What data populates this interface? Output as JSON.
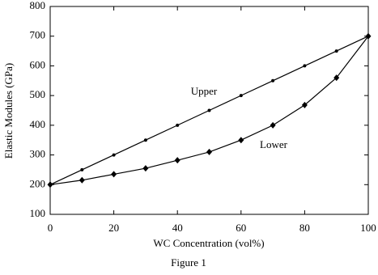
{
  "chart_data": {
    "type": "line",
    "caption": "Figure 1",
    "xlabel": "WC Concentration (vol%)",
    "ylabel": "Elastic Modules (GPa)",
    "x": [
      0,
      10,
      20,
      30,
      40,
      50,
      60,
      70,
      80,
      90,
      100
    ],
    "series": [
      {
        "name": "Upper",
        "color": "#000000",
        "marker": "dot",
        "values": [
          200,
          250,
          300,
          350,
          400,
          450,
          500,
          550,
          600,
          650,
          700
        ]
      },
      {
        "name": "Lower",
        "color": "#000000",
        "marker": "diamond",
        "values": [
          200,
          215,
          235,
          255,
          282,
          310,
          350,
          400,
          468,
          560,
          700
        ]
      }
    ],
    "xlim": [
      0,
      100
    ],
    "xticks": [
      0,
      20,
      40,
      60,
      80,
      100
    ],
    "ylim": [
      100,
      800
    ],
    "yticks": [
      100,
      200,
      300,
      400,
      500,
      600,
      700,
      800
    ],
    "grid": false
  }
}
